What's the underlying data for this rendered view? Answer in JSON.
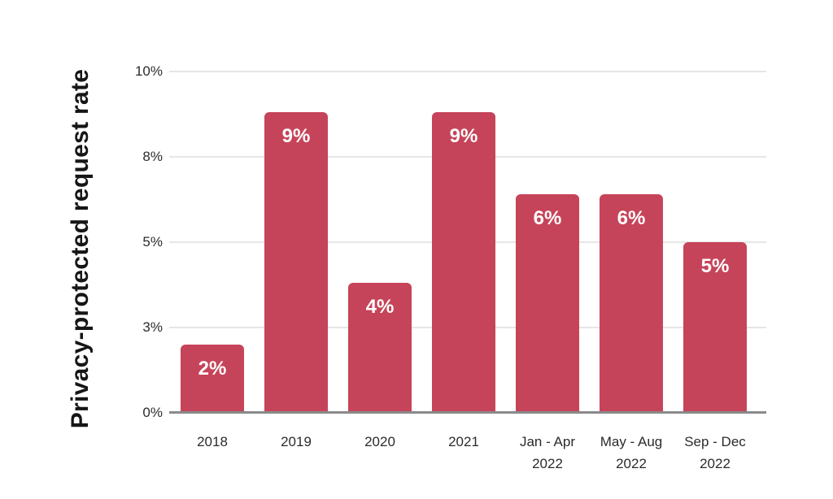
{
  "chart_data": {
    "type": "bar",
    "title": "",
    "xlabel": "",
    "ylabel": "Privacy-protected request rate",
    "categories": [
      "2018",
      "2019",
      "2020",
      "2021",
      "Jan - Apr\n2022",
      "May - Aug\n2022",
      "Sep - Dec\n2022"
    ],
    "values": [
      2,
      9,
      4,
      9,
      6,
      6,
      5
    ],
    "plotted_values": [
      2.0,
      8.8,
      3.8,
      8.8,
      6.4,
      6.4,
      5.0
    ],
    "bar_labels": [
      "2%",
      "9%",
      "4%",
      "9%",
      "6%",
      "6%",
      "5%"
    ],
    "ylim": [
      0,
      10
    ],
    "yticks": [
      {
        "value": 10,
        "label": "10%"
      },
      {
        "value": 7.5,
        "label": "8%"
      },
      {
        "value": 5,
        "label": "5%"
      },
      {
        "value": 2.5,
        "label": "3%"
      },
      {
        "value": 0,
        "label": "0%"
      }
    ],
    "grid": true,
    "legend": false,
    "colors": {
      "bar": "#C64459",
      "bar_label": "#FFFFFF",
      "gridline": "#E6E6E6",
      "axis_line": "#8A8A8A",
      "tick_text": "#2B2B2B",
      "axis_title_text": "#161616",
      "background": "#FFFFFF"
    }
  }
}
